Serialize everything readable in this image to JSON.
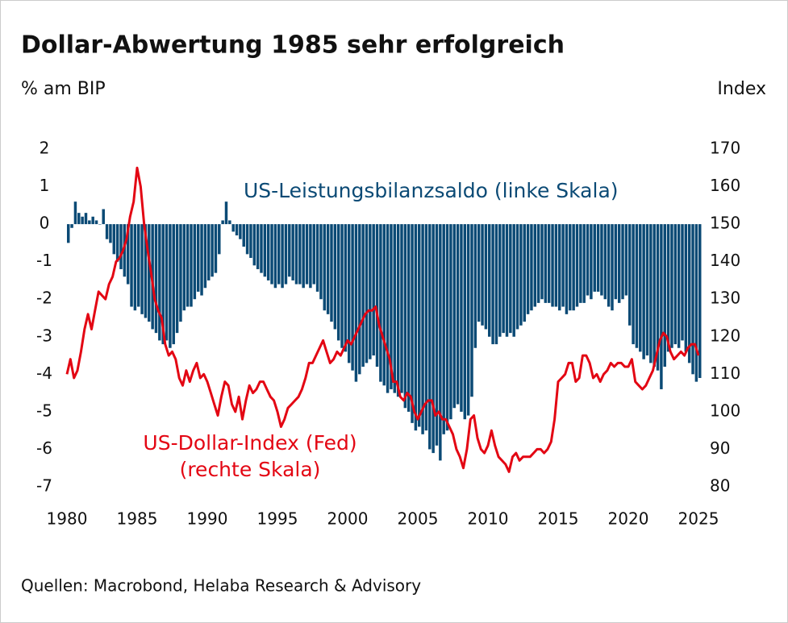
{
  "chart_data": {
    "type": "bar-line",
    "title": "Dollar-Abwertung 1985 sehr erfolgreich",
    "y_label": "% am BIP",
    "y2_label": "Index",
    "source": "Quellen: Macrobond, Helaba Research & Advisory",
    "xlim": [
      1980,
      2025
    ],
    "xticks": [
      1980,
      1985,
      1990,
      1995,
      2000,
      2005,
      2010,
      2015,
      2020,
      2025
    ],
    "ylim": [
      -7,
      2
    ],
    "yticks": [
      -7,
      -6,
      -5,
      -4,
      -3,
      -2,
      -1,
      0,
      1,
      2
    ],
    "y2lim": [
      80,
      170
    ],
    "y2ticks": [
      80,
      90,
      100,
      110,
      120,
      130,
      140,
      150,
      160,
      170
    ],
    "x": [
      1980,
      1980.25,
      1980.5,
      1980.75,
      1981,
      1981.25,
      1981.5,
      1981.75,
      1982,
      1982.25,
      1982.5,
      1982.75,
      1983,
      1983.25,
      1983.5,
      1983.75,
      1984,
      1984.25,
      1984.5,
      1984.75,
      1985,
      1985.25,
      1985.5,
      1985.75,
      1986,
      1986.25,
      1986.5,
      1986.75,
      1987,
      1987.25,
      1987.5,
      1987.75,
      1988,
      1988.25,
      1988.5,
      1988.75,
      1989,
      1989.25,
      1989.5,
      1989.75,
      1990,
      1990.25,
      1990.5,
      1990.75,
      1991,
      1991.25,
      1991.5,
      1991.75,
      1992,
      1992.25,
      1992.5,
      1992.75,
      1993,
      1993.25,
      1993.5,
      1993.75,
      1994,
      1994.25,
      1994.5,
      1994.75,
      1995,
      1995.25,
      1995.5,
      1995.75,
      1996,
      1996.25,
      1996.5,
      1996.75,
      1997,
      1997.25,
      1997.5,
      1997.75,
      1998,
      1998.25,
      1998.5,
      1998.75,
      1999,
      1999.25,
      1999.5,
      1999.75,
      2000,
      2000.25,
      2000.5,
      2000.75,
      2001,
      2001.25,
      2001.5,
      2001.75,
      2002,
      2002.25,
      2002.5,
      2002.75,
      2003,
      2003.25,
      2003.5,
      2003.75,
      2004,
      2004.25,
      2004.5,
      2004.75,
      2005,
      2005.25,
      2005.5,
      2005.75,
      2006,
      2006.25,
      2006.5,
      2006.75,
      2007,
      2007.25,
      2007.5,
      2007.75,
      2008,
      2008.25,
      2008.5,
      2008.75,
      2009,
      2009.25,
      2009.5,
      2009.75,
      2010,
      2010.25,
      2010.5,
      2010.75,
      2011,
      2011.25,
      2011.5,
      2011.75,
      2012,
      2012.25,
      2012.5,
      2012.75,
      2013,
      2013.25,
      2013.5,
      2013.75,
      2014,
      2014.25,
      2014.5,
      2014.75,
      2015,
      2015.25,
      2015.5,
      2015.75,
      2016,
      2016.25,
      2016.5,
      2016.75,
      2017,
      2017.25,
      2017.5,
      2017.75,
      2018,
      2018.25,
      2018.5,
      2018.75,
      2019,
      2019.25,
      2019.5,
      2019.75,
      2020,
      2020.25,
      2020.5,
      2020.75,
      2021,
      2021.25,
      2021.5,
      2021.75,
      2022,
      2022.25,
      2022.5,
      2022.75,
      2023,
      2023.25,
      2023.5,
      2023.75,
      2024,
      2024.25,
      2024.5,
      2024.75,
      2025
    ],
    "series": [
      {
        "name": "US-Leistungsbilanzsaldo (linke Skala)",
        "color": "#0b4a75",
        "kind": "bar",
        "axis": "y",
        "values": [
          -0.5,
          -0.1,
          0.6,
          0.3,
          0.2,
          0.3,
          0.1,
          0.2,
          0.1,
          0.0,
          0.4,
          -0.4,
          -0.5,
          -0.8,
          -1.0,
          -1.2,
          -1.4,
          -1.6,
          -2.2,
          -2.3,
          -2.2,
          -2.4,
          -2.5,
          -2.6,
          -2.8,
          -2.9,
          -3.1,
          -3.2,
          -3.1,
          -3.3,
          -3.2,
          -2.9,
          -2.6,
          -2.3,
          -2.2,
          -2.2,
          -2.0,
          -1.8,
          -1.9,
          -1.7,
          -1.5,
          -1.4,
          -1.3,
          -0.8,
          0.1,
          0.6,
          0.1,
          -0.2,
          -0.3,
          -0.4,
          -0.6,
          -0.8,
          -0.9,
          -1.1,
          -1.2,
          -1.3,
          -1.4,
          -1.5,
          -1.6,
          -1.7,
          -1.6,
          -1.7,
          -1.6,
          -1.4,
          -1.5,
          -1.6,
          -1.6,
          -1.7,
          -1.6,
          -1.7,
          -1.6,
          -1.8,
          -2.0,
          -2.3,
          -2.4,
          -2.6,
          -2.8,
          -3.1,
          -3.3,
          -3.4,
          -3.7,
          -3.9,
          -4.2,
          -4.0,
          -3.8,
          -3.7,
          -3.6,
          -3.5,
          -3.8,
          -4.2,
          -4.3,
          -4.5,
          -4.4,
          -4.5,
          -4.6,
          -4.5,
          -4.9,
          -5.0,
          -5.3,
          -5.5,
          -5.4,
          -5.6,
          -5.5,
          -6.0,
          -6.1,
          -5.9,
          -6.3,
          -5.6,
          -5.5,
          -5.2,
          -4.9,
          -4.8,
          -5.0,
          -5.2,
          -5.1,
          -4.6,
          -3.3,
          -2.6,
          -2.7,
          -2.8,
          -3.0,
          -3.2,
          -3.2,
          -3.0,
          -2.9,
          -3.0,
          -2.9,
          -3.0,
          -2.8,
          -2.7,
          -2.6,
          -2.4,
          -2.3,
          -2.2,
          -2.1,
          -2.0,
          -2.1,
          -2.1,
          -2.2,
          -2.2,
          -2.3,
          -2.2,
          -2.4,
          -2.3,
          -2.3,
          -2.2,
          -2.1,
          -2.1,
          -1.9,
          -2.0,
          -1.8,
          -1.8,
          -1.9,
          -2.0,
          -2.2,
          -2.3,
          -2.0,
          -2.1,
          -2.0,
          -1.9,
          -2.7,
          -3.2,
          -3.3,
          -3.4,
          -3.6,
          -3.5,
          -3.7,
          -3.8,
          -3.9,
          -4.4,
          -3.8,
          -3.4,
          -3.3,
          -3.2,
          -3.3,
          -3.1,
          -3.4,
          -3.7,
          -4.0,
          -4.2,
          -4.1
        ]
      },
      {
        "name": "US-Dollar-Index (Fed)",
        "name_2": "(rechte Skala)",
        "color": "#e30613",
        "kind": "line",
        "axis": "y2",
        "values": [
          110,
          114,
          109,
          111,
          116,
          122,
          126,
          122,
          127,
          132,
          131,
          130,
          134,
          136,
          140,
          141,
          143,
          146,
          152,
          156,
          165,
          160,
          150,
          143,
          137,
          130,
          127,
          125,
          118,
          115,
          116,
          114,
          109,
          107,
          111,
          108,
          111,
          113,
          109,
          110,
          108,
          105,
          102,
          99,
          104,
          108,
          107,
          102,
          100,
          104,
          98,
          103,
          107,
          105,
          106,
          108,
          108,
          106,
          104,
          103,
          100,
          96,
          98,
          101,
          102,
          103,
          104,
          106,
          109,
          113,
          113,
          115,
          117,
          119,
          116,
          113,
          114,
          116,
          115,
          117,
          119,
          118,
          120,
          122,
          124,
          126,
          127,
          127,
          128,
          123,
          120,
          117,
          114,
          108,
          108,
          104,
          103,
          105,
          104,
          100,
          98,
          100,
          102,
          103,
          103,
          99,
          100,
          98,
          98,
          96,
          94,
          90,
          88,
          85,
          90,
          98,
          99,
          93,
          90,
          89,
          91,
          95,
          91,
          88,
          87,
          86,
          84,
          88,
          89,
          87,
          88,
          88,
          88,
          89,
          90,
          90,
          89,
          90,
          92,
          98,
          108,
          109,
          110,
          113,
          113,
          108,
          109,
          115,
          115,
          113,
          109,
          110,
          108,
          110,
          111,
          113,
          112,
          113,
          113,
          112,
          112,
          114,
          108,
          107,
          106,
          107,
          109,
          111,
          115,
          119,
          121,
          120,
          116,
          114,
          115,
          116,
          115,
          117,
          118,
          118,
          115
        ]
      }
    ]
  }
}
